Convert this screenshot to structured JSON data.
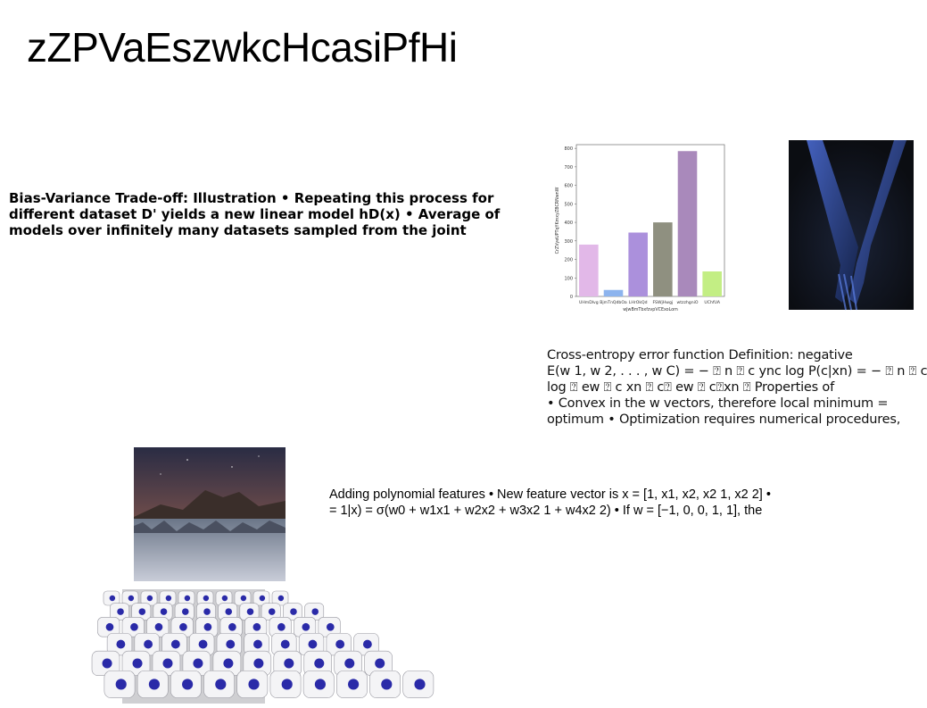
{
  "page": {
    "title": "zZPVaEszwkcHcasiPfHi"
  },
  "bias_text": "Bias-Variance Trade-off: Illustration • Repeating this process for different dataset D' yields a new linear model hD(x) • Average of models over infinitely many datasets sampled from the joint",
  "cross_entropy_lines": [
    "Cross-entropy error function Definition: negative",
    "E(w 1, w 2, . . . , w C) = − ⍰ n ⍰ c ync log P(c|xn) = − ⍰ n ⍰ c",
    "log ⍰ ew ⍰ c xn ⍰ c⍰ ew ⍰ c⍰xn ⍰ Properties of",
    "• Convex in the w vectors, therefore local minimum =",
    "optimum • Optimization requires numerical procedures,"
  ],
  "poly_lines": [
    "Adding polynomial features • New feature vector is x = [1, x1, x2, x2 1, x2 2] •",
    "= 1|x) = σ(w0 + w1x1 + w2x2 + w3x2 1 + w4x2 2) • If w = [−1, 0, 0, 1, 1], the"
  ],
  "chart_data": {
    "type": "bar",
    "categories": [
      "UHmDlvg",
      "BjmTnQdbOa",
      "LHrOkQd",
      "FSWjHwgj",
      "wtzzhgniO",
      "UChfUA"
    ],
    "values": [
      280,
      35,
      345,
      400,
      785,
      135
    ],
    "colors": [
      "#e2b8e8",
      "#8db4ee",
      "#ab90dc",
      "#8f9080",
      "#a989bb",
      "#c3ee84"
    ],
    "xlabel": "wJwBmTbxfzvpVCExoLom",
    "ylabel": "CrZVyeUPTqYKmxyZBCRNwnW",
    "yticks": [
      0,
      100,
      200,
      300,
      400,
      500,
      600,
      700,
      800
    ],
    "ylim": [
      0,
      820
    ]
  }
}
